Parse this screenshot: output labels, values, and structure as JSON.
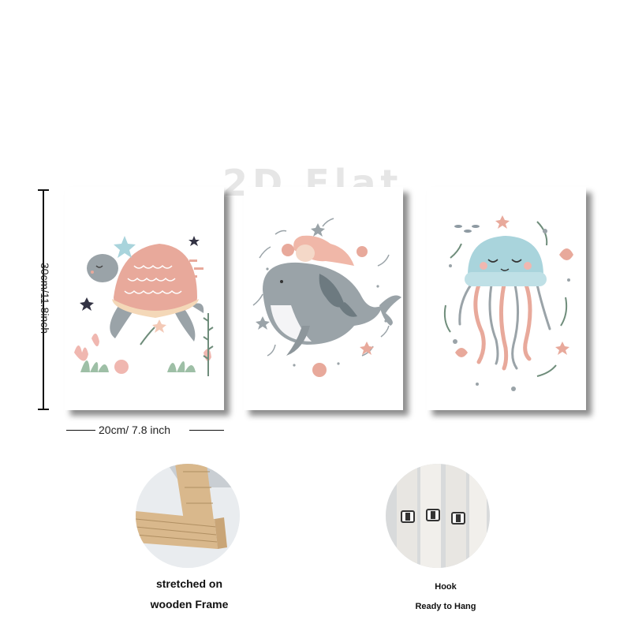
{
  "watermark": "2D Flat",
  "dimensions": {
    "height_label": "30cm/11.8inch",
    "width_label": "20cm/ 7.8 inch"
  },
  "panels": [
    {
      "subject": "turtle"
    },
    {
      "subject": "mermaid-on-whale"
    },
    {
      "subject": "jellyfish"
    }
  ],
  "features": {
    "frame": {
      "line1": "stretched on",
      "line2": "wooden Frame"
    },
    "hook": {
      "line1": "Hook",
      "line2": "Ready to Hang"
    }
  },
  "colors": {
    "pink": "#e8a99b",
    "grey": "#9aa3a8",
    "teal": "#a9d4dc",
    "green": "#8aa894",
    "wood": "#d9b88c"
  }
}
